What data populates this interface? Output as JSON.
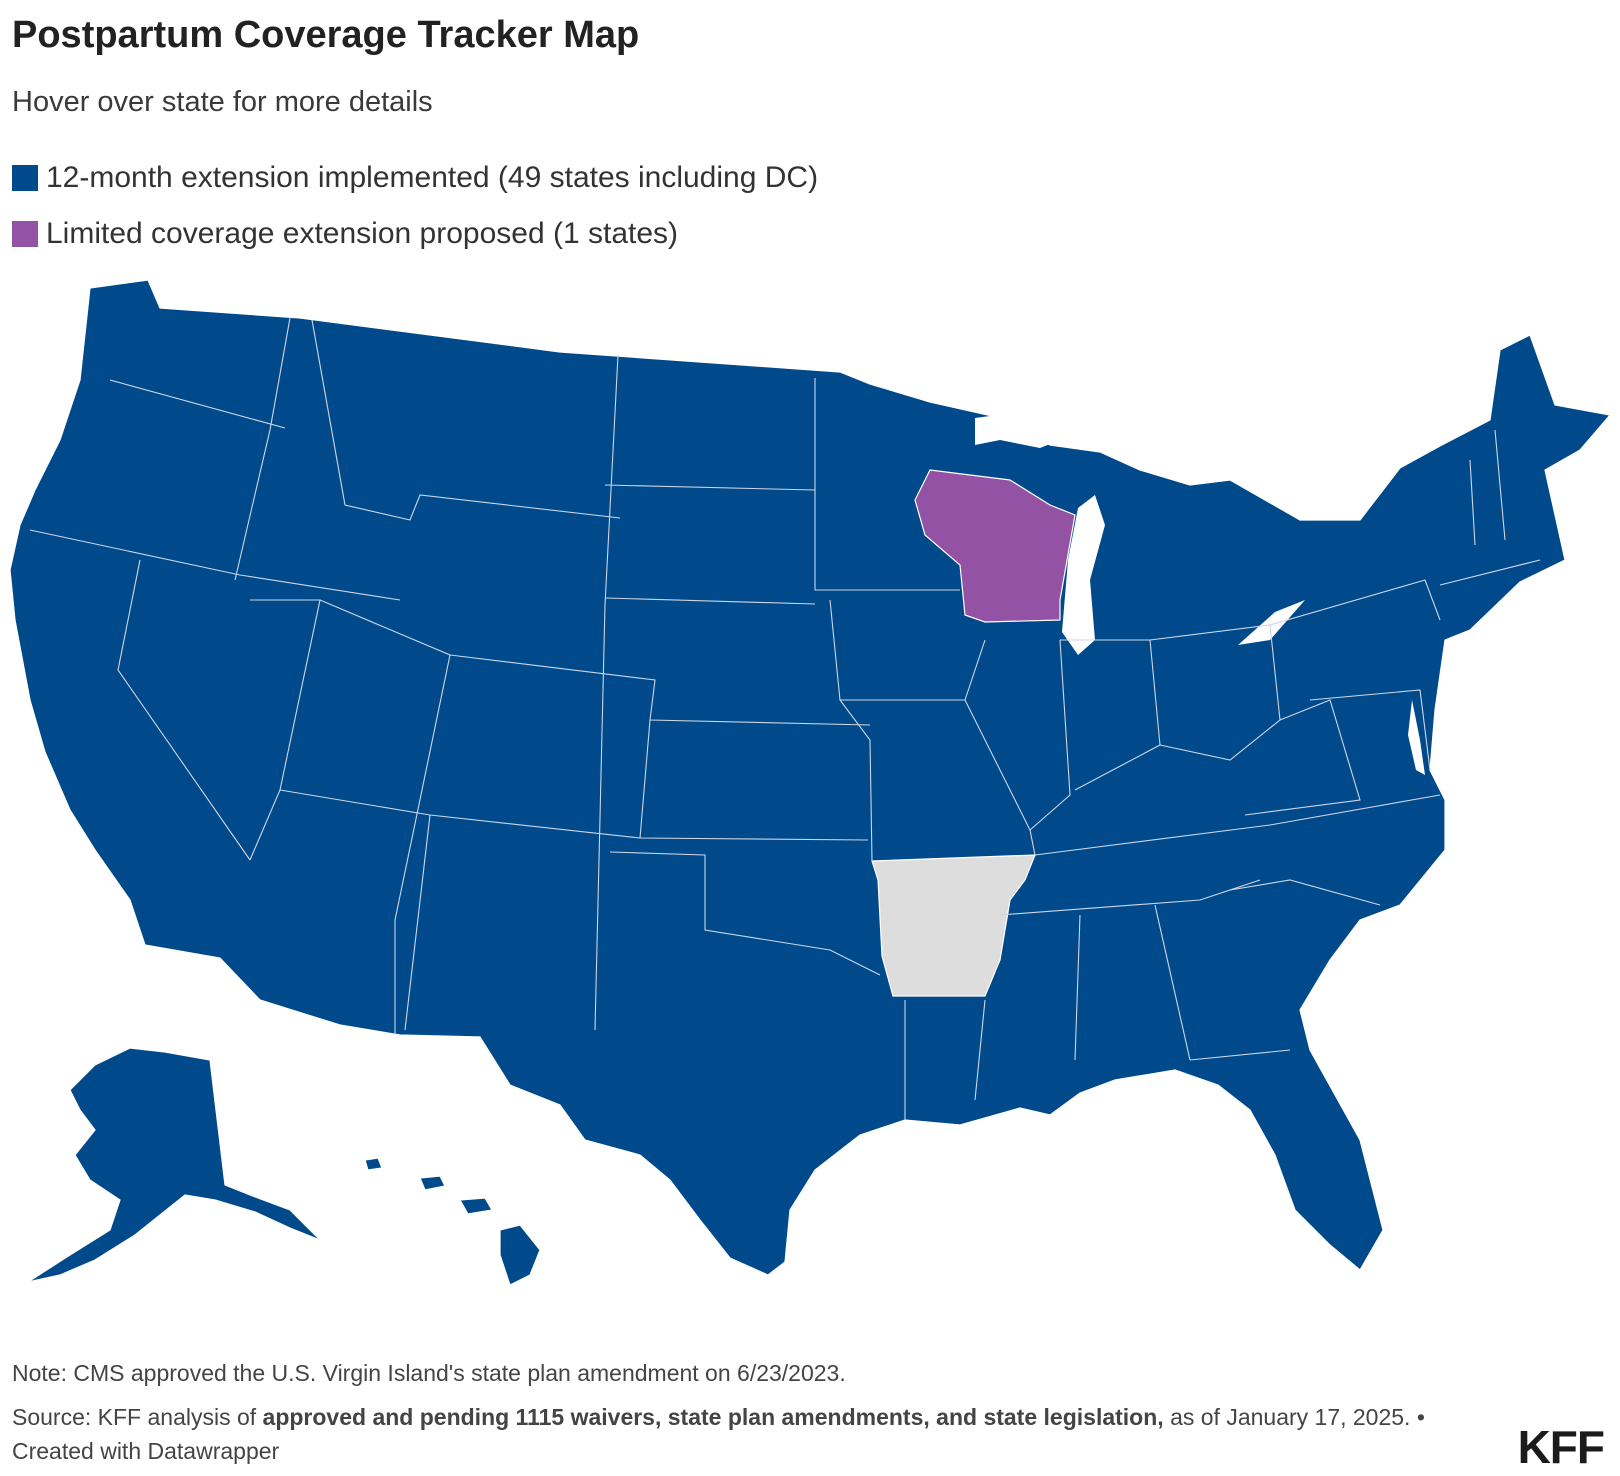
{
  "header": {
    "title": "Postpartum Coverage Tracker Map",
    "subtitle": "Hover over state for more details"
  },
  "legend": [
    {
      "label": "12-month extension implemented (49 states including DC)",
      "color": "#004a8b"
    },
    {
      "label": "Limited coverage extension proposed (1 states)",
      "color": "#9352a4"
    }
  ],
  "map": {
    "no_data_color": "#dddddd",
    "state_status": {
      "Wisconsin": "Limited coverage extension proposed",
      "Arkansas": "No extension",
      "All other states and DC": "12-month extension implemented"
    }
  },
  "footer": {
    "note": "Note: CMS approved the U.S. Virgin Island's state plan amendment on 6/23/2023.",
    "source_prefix": "Source: KFF analysis of",
    "source_link": "approved and pending 1115 waivers, state plan amendments, and state legislation,",
    "source_suffix": "as of January 17, 2025. • Created with Datawrapper",
    "logo": "KFF"
  }
}
